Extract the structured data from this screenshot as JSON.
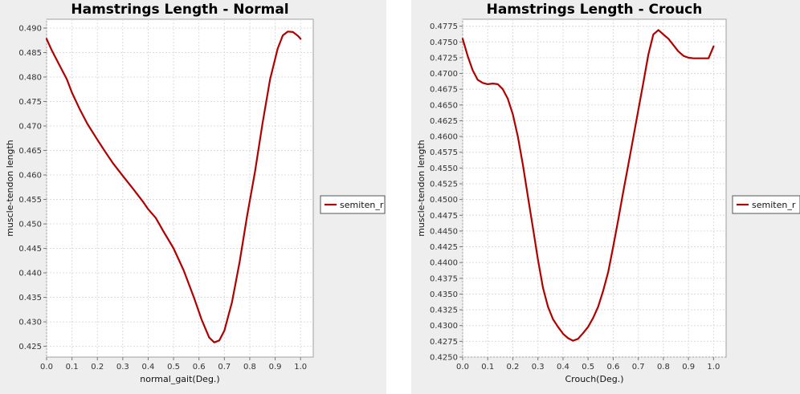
{
  "chart_data": [
    {
      "type": "line",
      "title": "Hamstrings Length - Normal",
      "xlabel": "normal_gait(Deg.)",
      "ylabel": "muscle-tendon length",
      "xlim": [
        0.0,
        1.05
      ],
      "ylim": [
        0.4228,
        0.4918
      ],
      "xticks": [
        "0.0",
        "0.1",
        "0.2",
        "0.3",
        "0.4",
        "0.5",
        "0.6",
        "0.7",
        "0.8",
        "0.9",
        "1.0"
      ],
      "xtick_values": [
        0.0,
        0.1,
        0.2,
        0.3,
        0.4,
        0.5,
        0.6,
        0.7,
        0.8,
        0.9,
        1.0
      ],
      "yticks": [
        "0.425",
        "0.430",
        "0.435",
        "0.440",
        "0.445",
        "0.450",
        "0.455",
        "0.460",
        "0.465",
        "0.470",
        "0.475",
        "0.480",
        "0.485",
        "0.490"
      ],
      "ytick_values": [
        0.425,
        0.43,
        0.435,
        0.44,
        0.445,
        0.45,
        0.455,
        0.46,
        0.465,
        0.47,
        0.475,
        0.48,
        0.485,
        0.49
      ],
      "grid": true,
      "legend_position": "right",
      "series": [
        {
          "name": "semiten_r",
          "color": "#b00000",
          "x": [
            0.0,
            0.02,
            0.05,
            0.08,
            0.1,
            0.13,
            0.16,
            0.2,
            0.23,
            0.26,
            0.3,
            0.34,
            0.38,
            0.4,
            0.43,
            0.46,
            0.5,
            0.54,
            0.58,
            0.61,
            0.64,
            0.66,
            0.68,
            0.7,
            0.73,
            0.76,
            0.79,
            0.82,
            0.85,
            0.88,
            0.91,
            0.93,
            0.95,
            0.97,
            0.99,
            1.0
          ],
          "values": [
            0.4878,
            0.4855,
            0.4825,
            0.4795,
            0.4768,
            0.4735,
            0.4705,
            0.4672,
            0.4648,
            0.4625,
            0.4598,
            0.4572,
            0.4545,
            0.453,
            0.4512,
            0.4485,
            0.445,
            0.4405,
            0.435,
            0.4305,
            0.4268,
            0.4258,
            0.4262,
            0.4282,
            0.434,
            0.4422,
            0.4518,
            0.4605,
            0.4705,
            0.4795,
            0.4858,
            0.4885,
            0.4893,
            0.4892,
            0.4884,
            0.4878
          ]
        }
      ]
    },
    {
      "type": "line",
      "title": "Hamstrings Length - Crouch",
      "xlabel": "Crouch(Deg.)",
      "ylabel": "muscle-tendon length",
      "xlim": [
        0.0,
        1.05
      ],
      "ylim": [
        0.425,
        0.4786
      ],
      "xticks": [
        "0.0",
        "0.1",
        "0.2",
        "0.3",
        "0.4",
        "0.5",
        "0.6",
        "0.7",
        "0.8",
        "0.9",
        "1.0"
      ],
      "xtick_values": [
        0.0,
        0.1,
        0.2,
        0.3,
        0.4,
        0.5,
        0.6,
        0.7,
        0.8,
        0.9,
        1.0
      ],
      "yticks": [
        "0.4250",
        "0.4275",
        "0.4300",
        "0.4325",
        "0.4350",
        "0.4375",
        "0.4400",
        "0.4425",
        "0.4450",
        "0.4475",
        "0.4500",
        "0.4525",
        "0.4550",
        "0.4575",
        "0.4600",
        "0.4625",
        "0.4650",
        "0.4675",
        "0.4700",
        "0.4725",
        "0.4750",
        "0.4775"
      ],
      "ytick_values": [
        0.425,
        0.4275,
        0.43,
        0.4325,
        0.435,
        0.4375,
        0.44,
        0.4425,
        0.445,
        0.4475,
        0.45,
        0.4525,
        0.455,
        0.4575,
        0.46,
        0.4625,
        0.465,
        0.4675,
        0.47,
        0.4725,
        0.475,
        0.4775
      ],
      "grid": true,
      "legend_position": "right",
      "series": [
        {
          "name": "semiten_r",
          "color": "#b00000",
          "x": [
            0.0,
            0.02,
            0.04,
            0.06,
            0.08,
            0.1,
            0.12,
            0.14,
            0.16,
            0.18,
            0.2,
            0.22,
            0.24,
            0.26,
            0.28,
            0.3,
            0.32,
            0.34,
            0.36,
            0.38,
            0.4,
            0.42,
            0.44,
            0.46,
            0.48,
            0.5,
            0.52,
            0.54,
            0.56,
            0.58,
            0.6,
            0.62,
            0.64,
            0.66,
            0.68,
            0.7,
            0.72,
            0.74,
            0.76,
            0.78,
            0.8,
            0.82,
            0.84,
            0.86,
            0.88,
            0.9,
            0.92,
            0.94,
            0.96,
            0.98,
            1.0
          ],
          "values": [
            0.4755,
            0.4728,
            0.4705,
            0.469,
            0.4685,
            0.4683,
            0.4684,
            0.4683,
            0.4675,
            0.466,
            0.4635,
            0.46,
            0.4555,
            0.4505,
            0.4455,
            0.4405,
            0.436,
            0.433,
            0.431,
            0.4298,
            0.4287,
            0.428,
            0.4276,
            0.4279,
            0.4288,
            0.4298,
            0.4312,
            0.433,
            0.4355,
            0.4385,
            0.4425,
            0.4468,
            0.4512,
            0.4555,
            0.4598,
            0.4642,
            0.4685,
            0.473,
            0.4762,
            0.4769,
            0.4762,
            0.4755,
            0.4745,
            0.4735,
            0.4728,
            0.4725,
            0.4724,
            0.4724,
            0.4724,
            0.4724,
            0.4743
          ]
        }
      ]
    }
  ]
}
